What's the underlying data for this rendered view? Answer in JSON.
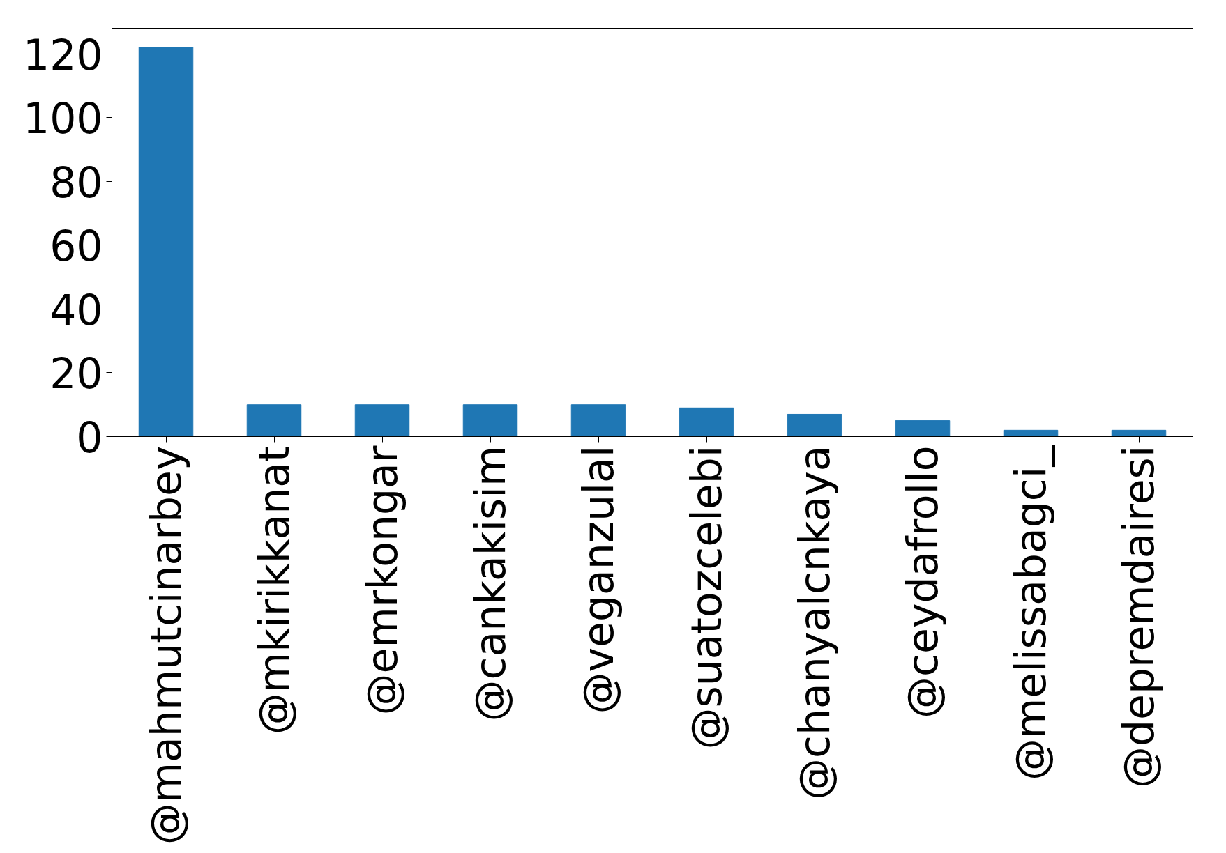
{
  "chart_data": {
    "type": "bar",
    "categories": [
      "@mahmutcinarbey",
      "@mkirikkanat",
      "@emrkongar",
      "@cankakisim",
      "@veganzulal",
      "@suatozcelebi",
      "@chanyalcnkaya",
      "@ceydafrollo",
      "@melissabagci_",
      "@depremdairesi"
    ],
    "values": [
      122,
      10,
      10,
      10,
      10,
      9,
      7,
      5,
      2,
      2
    ],
    "color": "#1f77b4",
    "ylim": [
      0,
      128
    ],
    "yticks": [
      0,
      20,
      40,
      60,
      80,
      100,
      120
    ],
    "grid": false
  }
}
